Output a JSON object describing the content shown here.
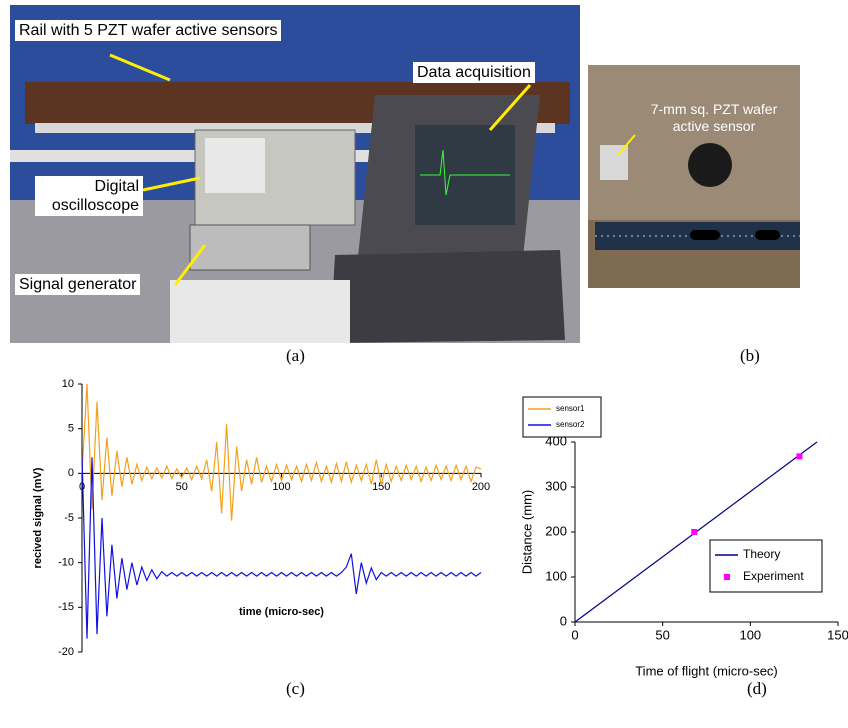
{
  "panels": {
    "a": {
      "caption": "(a)",
      "labels": [
        "Rail with 5 PZT wafer active sensors",
        "Data acquisition",
        "Digital oscilloscope",
        "Signal generator"
      ]
    },
    "b": {
      "caption": "(b)",
      "labels": [
        "7-mm sq. PZT wafer active sensor"
      ]
    },
    "c": {
      "caption": "(c)"
    },
    "d": {
      "caption": "(d)"
    }
  },
  "chart_data": [
    {
      "type": "line",
      "ylabel": "recived signal (mV)",
      "xlabel": "time (micro-sec)",
      "xlim": [
        0,
        200
      ],
      "xticks": [
        0,
        50,
        100,
        150,
        200
      ],
      "ylim": [
        -20,
        10
      ],
      "yticks": [
        -20,
        -15,
        -10,
        -5,
        0,
        5,
        10
      ],
      "grid": false,
      "legend": "upper right",
      "x": [
        0,
        2.5,
        5,
        7.5,
        10,
        12.5,
        15,
        17.5,
        20,
        22.5,
        25,
        27.5,
        30,
        32.5,
        35,
        37.5,
        40,
        42.5,
        45,
        47.5,
        50,
        52.5,
        55,
        57.5,
        60,
        62.5,
        65,
        67.5,
        70,
        72.5,
        75,
        77.5,
        80,
        82.5,
        85,
        87.5,
        90,
        92.5,
        95,
        97.5,
        100,
        102.5,
        105,
        107.5,
        110,
        112.5,
        115,
        117.5,
        120,
        122.5,
        125,
        127.5,
        130,
        132.5,
        135,
        137.5,
        140,
        142.5,
        145,
        147.5,
        150,
        152.5,
        155,
        157.5,
        160,
        162.5,
        165,
        167.5,
        170,
        172.5,
        175,
        177.5,
        180,
        182.5,
        185,
        187.5,
        190,
        192.5,
        195,
        197.5,
        200
      ],
      "series": [
        {
          "name": "sensor1",
          "color": "#f5a01a",
          "values": [
            0,
            10,
            -4,
            8,
            -3,
            4,
            -2.5,
            2.5,
            -1.5,
            1.8,
            -1.2,
            1,
            -0.8,
            0.7,
            -0.6,
            0.6,
            -0.5,
            0.8,
            -0.6,
            0.5,
            -0.5,
            0.6,
            -0.7,
            0.8,
            -0.6,
            1.5,
            -2,
            3.5,
            -4.5,
            5.5,
            -5.3,
            3,
            -2,
            1.5,
            -1.2,
            1.8,
            -1,
            0.8,
            -0.9,
            1,
            -0.8,
            0.9,
            -0.7,
            0.8,
            -0.9,
            1,
            -0.8,
            1.2,
            -0.9,
            0.8,
            -1,
            1.1,
            -0.9,
            1.3,
            -1,
            0.9,
            -0.8,
            1,
            -1.2,
            1.5,
            -1.3,
            1,
            -0.9,
            0.8,
            -0.8,
            0.9,
            -0.7,
            0.8,
            -0.9,
            0.7,
            -0.8,
            0.9,
            -0.7,
            0.8,
            -0.8,
            0.9,
            -0.7,
            0.8,
            -0.9,
            0.7,
            0.5
          ]
        },
        {
          "name": "sensor2",
          "color": "#1010e0",
          "values": [
            2,
            -18.5,
            1.8,
            -18,
            -5,
            -16,
            -8,
            -14,
            -9.5,
            -13,
            -10,
            -12.5,
            -10.5,
            -12,
            -10.8,
            -11.8,
            -11,
            -11.5,
            -11.1,
            -11.5,
            -11.1,
            -11.5,
            -11.1,
            -11.5,
            -11.1,
            -11.5,
            -11.1,
            -11.5,
            -11.1,
            -11.5,
            -11.1,
            -11.5,
            -11.1,
            -11.5,
            -11.1,
            -11.5,
            -11.1,
            -11.5,
            -11.1,
            -11.5,
            -11.1,
            -11.5,
            -11.1,
            -11.5,
            -11.1,
            -11.5,
            -11.1,
            -11.5,
            -11.1,
            -11.5,
            -11.1,
            -11.5,
            -11.1,
            -10.5,
            -9,
            -13.5,
            -10,
            -12.3,
            -10.6,
            -11.9,
            -11.1,
            -11.5,
            -11.1,
            -11.5,
            -11.1,
            -11.5,
            -11.1,
            -11.5,
            -11.1,
            -11.5,
            -11.1,
            -11.5,
            -11.1,
            -11.5,
            -11.1,
            -11.5,
            -11.1,
            -11.5,
            -11.1,
            -11.5,
            -11.1
          ]
        }
      ]
    },
    {
      "type": "line",
      "ylabel": "Distance (mm)",
      "xlabel": "Time of flight (micro-sec)",
      "xlim": [
        0,
        150
      ],
      "xticks": [
        0,
        50,
        100,
        150
      ],
      "ylim": [
        0,
        400
      ],
      "yticks": [
        0,
        100,
        200,
        300,
        400
      ],
      "grid": false,
      "legend": "lower right",
      "series": [
        {
          "name": "Theory",
          "color": "#000080",
          "style": "line",
          "x": [
            0,
            138
          ],
          "values": [
            0,
            400
          ]
        },
        {
          "name": "Experiment",
          "color": "#ff00ff",
          "style": "markers",
          "x": [
            68,
            128
          ],
          "values": [
            200,
            368
          ]
        }
      ]
    }
  ]
}
